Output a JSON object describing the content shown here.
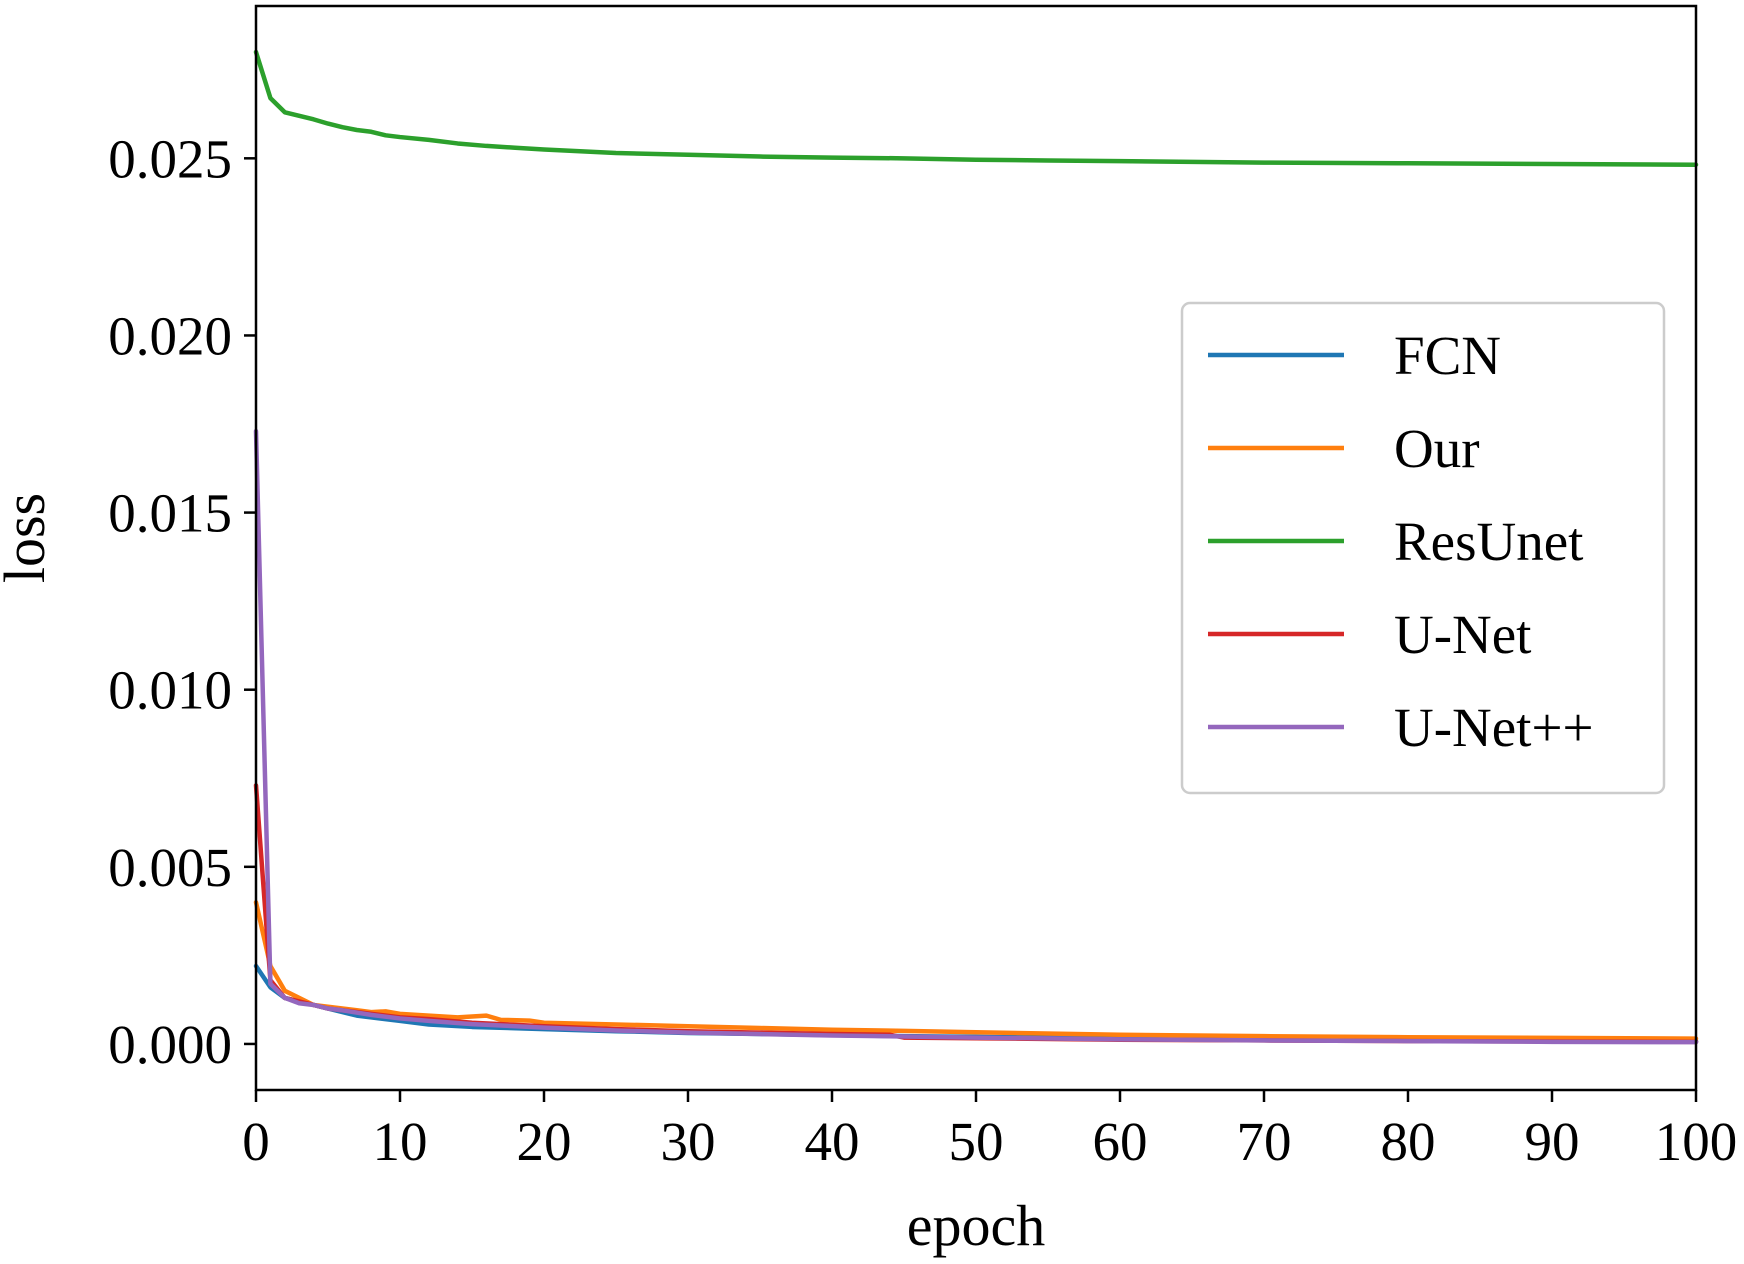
{
  "chart_data": {
    "type": "line",
    "xlabel": "epoch",
    "ylabel": "loss",
    "xlim": [
      0,
      100
    ],
    "ylim": [
      -0.0013,
      0.0293
    ],
    "xticks": [
      0,
      10,
      20,
      30,
      40,
      50,
      60,
      70,
      80,
      90,
      100
    ],
    "yticks": [
      0.0,
      0.005,
      0.01,
      0.015,
      0.02,
      0.025
    ],
    "ytick_labels": [
      "0.000",
      "0.005",
      "0.010",
      "0.015",
      "0.020",
      "0.025"
    ],
    "xtick_labels": [
      "0",
      "10",
      "20",
      "30",
      "40",
      "50",
      "60",
      "70",
      "80",
      "90",
      "100"
    ],
    "grid": false,
    "legend_position": "center-right",
    "series": [
      {
        "name": "FCN",
        "color": "#1f77b4",
        "x": [
          0,
          1,
          2,
          3,
          4,
          5,
          6,
          7,
          8,
          10,
          12,
          15,
          20,
          25,
          30,
          35,
          40,
          45,
          50,
          60,
          70,
          80,
          90,
          100
        ],
        "y": [
          0.0022,
          0.0016,
          0.0013,
          0.0012,
          0.0011,
          0.001,
          0.0009,
          0.0008,
          0.00075,
          0.00065,
          0.00055,
          0.00048,
          0.00042,
          0.00036,
          0.00031,
          0.00028,
          0.00025,
          0.00022,
          0.0002,
          0.00016,
          0.00013,
          0.00011,
          0.0001,
          8e-05
        ]
      },
      {
        "name": "Our",
        "color": "#ff7f0e",
        "x": [
          0,
          1,
          2,
          3,
          4,
          5,
          6,
          7,
          8,
          9,
          10,
          12,
          14,
          16,
          17,
          19,
          20,
          25,
          30,
          35,
          40,
          45,
          50,
          60,
          70,
          80,
          90,
          100
        ],
        "y": [
          0.004,
          0.0022,
          0.0015,
          0.0013,
          0.0011,
          0.00105,
          0.001,
          0.00095,
          0.0009,
          0.00092,
          0.00085,
          0.0008,
          0.00075,
          0.0008,
          0.00068,
          0.00066,
          0.0006,
          0.00055,
          0.0005,
          0.00045,
          0.0004,
          0.00037,
          0.00033,
          0.00026,
          0.00022,
          0.00019,
          0.00017,
          0.00015
        ]
      },
      {
        "name": "ResUnet",
        "color": "#2ca02c",
        "x": [
          0,
          1,
          2,
          3,
          4,
          5,
          6,
          7,
          8,
          9,
          10,
          12,
          14,
          16,
          18,
          20,
          25,
          30,
          35,
          40,
          45,
          50,
          55,
          60,
          70,
          80,
          90,
          100
        ],
        "y": [
          0.028,
          0.0267,
          0.0263,
          0.0262,
          0.0261,
          0.02598,
          0.02588,
          0.0258,
          0.02575,
          0.02565,
          0.0256,
          0.02552,
          0.02542,
          0.02535,
          0.0253,
          0.02525,
          0.02515,
          0.0251,
          0.02505,
          0.02502,
          0.025,
          0.02496,
          0.02494,
          0.02492,
          0.02488,
          0.02486,
          0.02484,
          0.02482
        ]
      },
      {
        "name": "U-Net",
        "color": "#d62728",
        "x": [
          0,
          1,
          2,
          3,
          4,
          5,
          6,
          8,
          10,
          12,
          15,
          20,
          25,
          30,
          35,
          40,
          44,
          45,
          50,
          60,
          70,
          80,
          90,
          100
        ],
        "y": [
          0.0073,
          0.0018,
          0.0013,
          0.0012,
          0.0011,
          0.001,
          0.00095,
          0.00085,
          0.00075,
          0.0007,
          0.0006,
          0.0005,
          0.00042,
          0.00036,
          0.00032,
          0.00028,
          0.00026,
          0.00018,
          0.00016,
          0.00012,
          0.0001,
          8e-05,
          7e-05,
          6e-05
        ]
      },
      {
        "name": "U-Net++",
        "color": "#9467bd",
        "x": [
          0,
          1,
          2,
          3,
          4,
          5,
          6,
          8,
          10,
          12,
          15,
          20,
          25,
          30,
          35,
          40,
          45,
          50,
          60,
          70,
          80,
          90,
          100
        ],
        "y": [
          0.0173,
          0.0017,
          0.0013,
          0.00115,
          0.0011,
          0.001,
          0.00095,
          0.00082,
          0.00072,
          0.00065,
          0.00056,
          0.00046,
          0.00038,
          0.00032,
          0.00028,
          0.00024,
          0.00021,
          0.00018,
          0.00013,
          0.0001,
          8e-05,
          6e-05,
          5e-05
        ]
      }
    ]
  }
}
